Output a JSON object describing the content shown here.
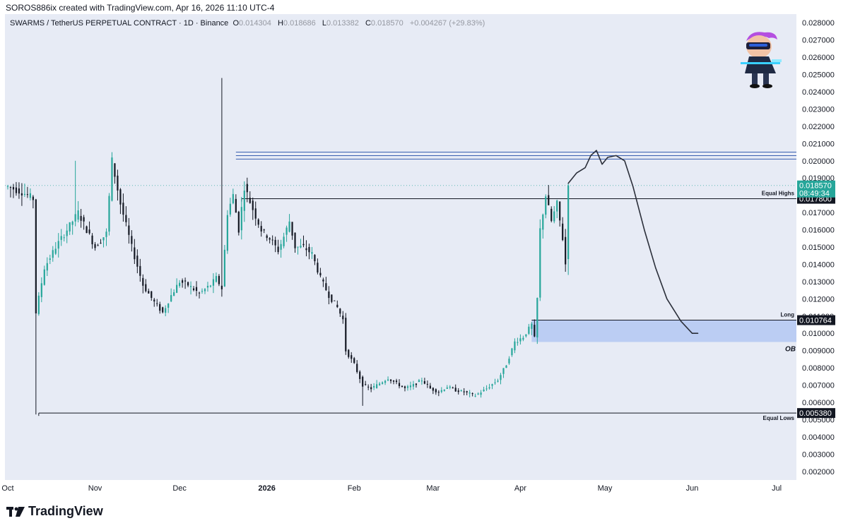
{
  "header": {
    "attribution": "SOROS886ix created with TradingView.com, Apr 16, 2026 11:10 UTC-4"
  },
  "legend": {
    "symbol": "SWARMS / TetherUS PERPETUAL CONTRACT · 1D · Binance",
    "open_label": "O",
    "open": "0.014304",
    "high_label": "H",
    "high": "0.018686",
    "low_label": "L",
    "low": "0.013382",
    "close_label": "C",
    "close": "0.018570",
    "change": "+0.004267 (+29.83%)"
  },
  "footer": {
    "brand": "TradingView"
  },
  "colors": {
    "up": "#26a69a",
    "down": "#131722",
    "background": "#e7ebf5",
    "zone": "#b3c8f2",
    "line_blue": "#3a5fb0",
    "badge_green": "#26a69a",
    "badge_dark": "#131722"
  },
  "icons": {
    "mascot": "cartoon-trader-mascot-icon",
    "logo": "tradingview-logo-icon"
  },
  "chart_data": {
    "type": "candlestick",
    "title": "",
    "ylim": [
      0.0015,
      0.0285
    ],
    "y_ticks": [
      "0.002000",
      "0.003000",
      "0.004000",
      "0.005000",
      "0.006000",
      "0.007000",
      "0.008000",
      "0.009000",
      "0.010000",
      "0.011000",
      "0.012000",
      "0.013000",
      "0.014000",
      "0.015000",
      "0.016000",
      "0.017000",
      "0.018000",
      "0.019000",
      "0.020000",
      "0.021000",
      "0.022000",
      "0.023000",
      "0.024000",
      "0.025000",
      "0.026000",
      "0.027000",
      "0.028000"
    ],
    "x_ticks": [
      {
        "label": "Oct",
        "day": 0
      },
      {
        "label": "Nov",
        "day": 31
      },
      {
        "label": "Dec",
        "day": 61
      },
      {
        "label": "2026",
        "day": 92
      },
      {
        "label": "Feb",
        "day": 123
      },
      {
        "label": "Mar",
        "day": 151
      },
      {
        "label": "Apr",
        "day": 182
      },
      {
        "label": "May",
        "day": 212
      },
      {
        "label": "Jun",
        "day": 243
      },
      {
        "label": "Jul",
        "day": 273
      }
    ],
    "x_range_days": [
      -1,
      280
    ],
    "price_path": [
      [
        0,
        0.0185
      ],
      [
        5,
        0.0182
      ],
      [
        9,
        0.0178
      ],
      [
        10,
        0.0112
      ],
      [
        13,
        0.0138
      ],
      [
        17,
        0.015
      ],
      [
        21,
        0.016
      ],
      [
        25,
        0.017
      ],
      [
        28,
        0.016
      ],
      [
        31,
        0.015
      ],
      [
        35,
        0.0158
      ],
      [
        37,
        0.02
      ],
      [
        40,
        0.0175
      ],
      [
        44,
        0.015
      ],
      [
        48,
        0.0128
      ],
      [
        52,
        0.0118
      ],
      [
        55,
        0.0112
      ],
      [
        58,
        0.0122
      ],
      [
        61,
        0.013
      ],
      [
        64,
        0.0128
      ],
      [
        68,
        0.0123
      ],
      [
        72,
        0.0128
      ],
      [
        74,
        0.0132
      ],
      [
        76,
        0.0126
      ],
      [
        78,
        0.017
      ],
      [
        80,
        0.018
      ],
      [
        82,
        0.016
      ],
      [
        84,
        0.0185
      ],
      [
        87,
        0.0172
      ],
      [
        90,
        0.016
      ],
      [
        93,
        0.0155
      ],
      [
        96,
        0.0148
      ],
      [
        98,
        0.0156
      ],
      [
        100,
        0.0165
      ],
      [
        102,
        0.015
      ],
      [
        105,
        0.015
      ],
      [
        108,
        0.0146
      ],
      [
        111,
        0.0132
      ],
      [
        114,
        0.0122
      ],
      [
        117,
        0.0115
      ],
      [
        119,
        0.0108
      ],
      [
        120,
        0.009
      ],
      [
        123,
        0.0082
      ],
      [
        126,
        0.007
      ],
      [
        129,
        0.0068
      ],
      [
        132,
        0.0071
      ],
      [
        135,
        0.0074
      ],
      [
        138,
        0.0071
      ],
      [
        141,
        0.0068
      ],
      [
        144,
        0.007
      ],
      [
        147,
        0.0073
      ],
      [
        150,
        0.0068
      ],
      [
        153,
        0.0066
      ],
      [
        156,
        0.0069
      ],
      [
        159,
        0.0067
      ],
      [
        162,
        0.0066
      ],
      [
        166,
        0.0064
      ],
      [
        170,
        0.0068
      ],
      [
        174,
        0.0073
      ],
      [
        177,
        0.0082
      ],
      [
        180,
        0.0095
      ],
      [
        183,
        0.0098
      ],
      [
        186,
        0.0105
      ],
      [
        187,
        0.0097
      ],
      [
        188,
        0.012
      ],
      [
        189,
        0.016
      ],
      [
        191,
        0.018
      ],
      [
        193,
        0.0165
      ],
      [
        195,
        0.0175
      ],
      [
        197,
        0.0155
      ],
      [
        198,
        0.014
      ],
      [
        199,
        0.0185
      ]
    ],
    "candle_extremes": [
      {
        "day": 76,
        "high": 0.0248
      },
      {
        "day": 37,
        "high": 0.0205
      },
      {
        "day": 24,
        "high": 0.02
      },
      {
        "day": 10,
        "low": 0.0053
      },
      {
        "day": 126,
        "low": 0.0058
      }
    ],
    "last_candle": {
      "open": 0.014304,
      "high": 0.018686,
      "low": 0.013382,
      "close": 0.01857
    },
    "levels": [
      {
        "label": "Equal Highs",
        "price": 0.0178,
        "badge": "0.017800",
        "from_day": 83
      },
      {
        "label": "Equal Lows",
        "price": 0.00538,
        "badge": "0.005380",
        "from_day": 11
      },
      {
        "label": "Long",
        "price": 0.010764,
        "badge": "0.010764",
        "from_day": 186
      }
    ],
    "current_price": {
      "badge": "0.018570",
      "countdown": "08:49:34",
      "price": 0.01857
    },
    "blue_lines": [
      0.0201,
      0.0203,
      0.0205
    ],
    "blue_lines_from_day": 81,
    "zone": {
      "label": "OB",
      "top": 0.010764,
      "bottom": 0.0095,
      "from_day": 186
    },
    "projection_path": [
      [
        199,
        0.0187
      ],
      [
        202,
        0.0193
      ],
      [
        205,
        0.0196
      ],
      [
        207,
        0.0203
      ],
      [
        209,
        0.0206
      ],
      [
        211,
        0.0198
      ],
      [
        213,
        0.0202
      ],
      [
        216,
        0.0203
      ],
      [
        219,
        0.02
      ],
      [
        222,
        0.0185
      ],
      [
        226,
        0.016
      ],
      [
        230,
        0.0138
      ],
      [
        234,
        0.012
      ],
      [
        239,
        0.0107
      ],
      [
        243,
        0.01
      ],
      [
        245,
        0.01
      ]
    ]
  }
}
